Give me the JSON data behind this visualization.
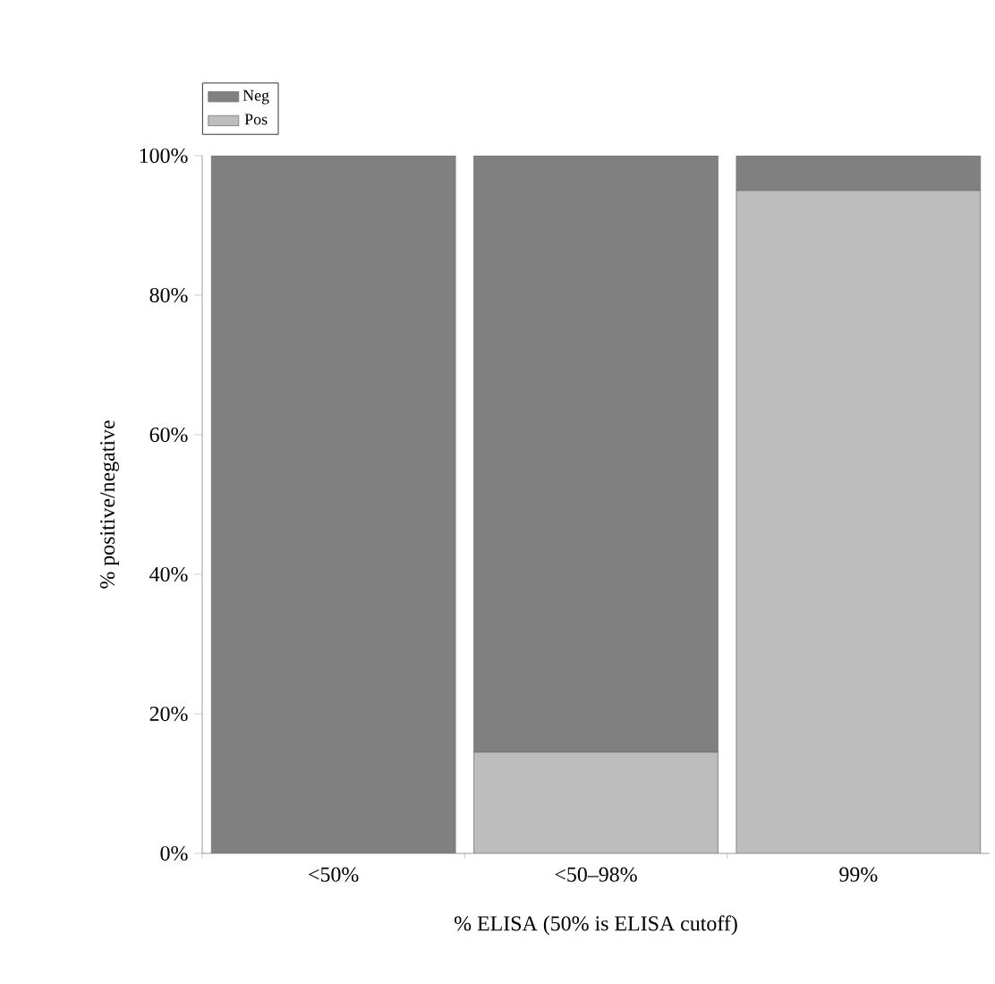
{
  "chart_data": {
    "type": "bar",
    "stacked": true,
    "xlabel": "% ELISA (50% is ELISA cutoff)",
    "ylabel": "% positive/negative",
    "categories": [
      "<50%",
      "<50–98%",
      "99%"
    ],
    "series": [
      {
        "name": "Pos",
        "color": "#bdbdbd",
        "values": [
          0,
          14.5,
          95
        ]
      },
      {
        "name": "Neg",
        "color": "#808080",
        "values": [
          100,
          85.5,
          5
        ]
      }
    ],
    "ylim": [
      0,
      100
    ],
    "yticks": [
      {
        "value": 0,
        "label": "0%"
      },
      {
        "value": 20,
        "label": "20%"
      },
      {
        "value": 40,
        "label": "40%"
      },
      {
        "value": 60,
        "label": "60%"
      },
      {
        "value": 80,
        "label": "80%"
      },
      {
        "value": 100,
        "label": "100%"
      }
    ],
    "legend": "top left",
    "grid": false
  }
}
